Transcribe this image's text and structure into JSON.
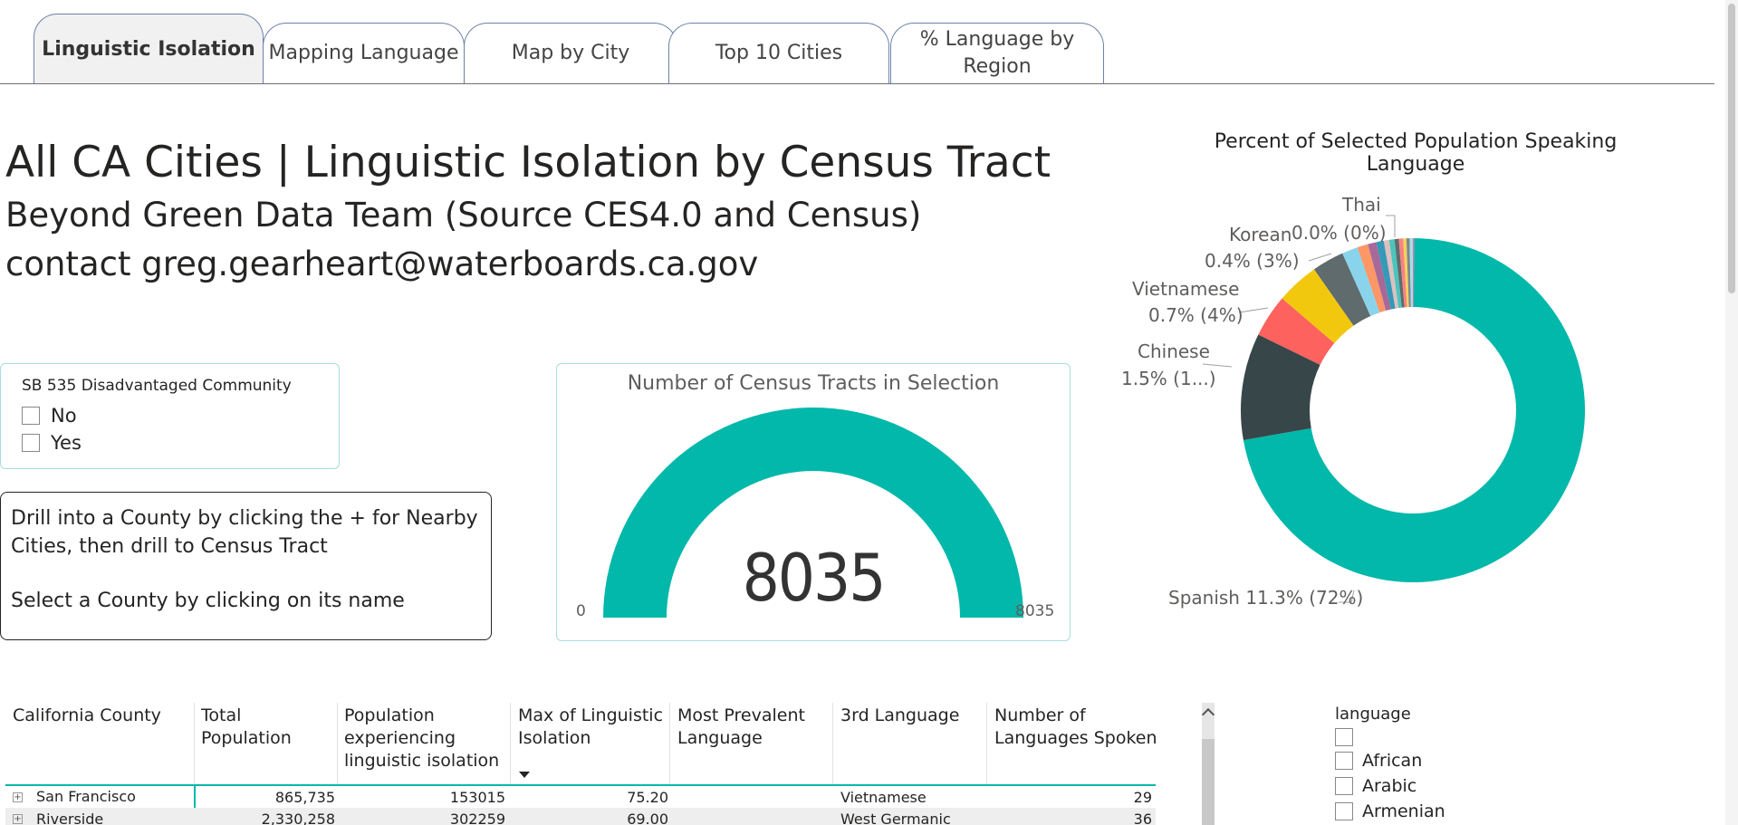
{
  "tabs": [
    {
      "label": "Linguistic Isolation",
      "active": true
    },
    {
      "label": "Mapping Language",
      "active": false
    },
    {
      "label": "Map by City",
      "active": false
    },
    {
      "label": "Top 10 Cities",
      "active": false
    },
    {
      "label": "% Language by Region",
      "active": false
    }
  ],
  "header": {
    "title": "All CA Cities | Linguistic Isolation by Census Tract",
    "subtitle": "Beyond Green Data Team (Source CES4.0 and Census)",
    "contact": "contact greg.gearheart@waterboards.ca.gov"
  },
  "sb535_slicer": {
    "title": "SB 535 Disadvantaged Community",
    "options": [
      "No",
      "Yes"
    ]
  },
  "info": {
    "line1": "Drill into a County by clicking the + for Nearby",
    "line2": "Cities, then drill to Census Tract",
    "line3": "Select a County by clicking on its name"
  },
  "gauge": {
    "title": "Number of Census Tracts in Selection",
    "value": "8035",
    "min": "0",
    "max": "8035",
    "fill_fraction": 1.0,
    "color": "#01b8aa"
  },
  "chart_data": {
    "type": "pie",
    "title": "Percent of Selected Population Speaking Language",
    "donut": true,
    "slices": [
      {
        "label": "Spanish",
        "pct_population": 11.3,
        "share": 72,
        "color": "#01b8aa",
        "data_label": "Spanish 11.3% (72%)"
      },
      {
        "label": "Chinese",
        "pct_population": 1.5,
        "share": 10,
        "color": "#374649",
        "data_label": "Chinese 1.5% (1...)"
      },
      {
        "label": "",
        "share": 4,
        "color": "#fd625e"
      },
      {
        "label": "Vietnamese",
        "pct_population": 0.7,
        "share": 4,
        "color": "#f2c80f",
        "data_label": "Vietnamese 0.7% (4%)"
      },
      {
        "label": "Korean",
        "pct_population": 0.4,
        "share": 3,
        "color": "#5f6b6d",
        "data_label": "Korean 0.4% (3%)"
      },
      {
        "label": "",
        "share": 1.5,
        "color": "#8ad4eb"
      },
      {
        "label": "",
        "share": 1.0,
        "color": "#fe9666"
      },
      {
        "label": "",
        "share": 0.8,
        "color": "#a66999"
      },
      {
        "label": "",
        "share": 0.7,
        "color": "#3599b8"
      },
      {
        "label": "",
        "share": 0.5,
        "color": "#dfbfbf"
      },
      {
        "label": "",
        "share": 0.5,
        "color": "#4ac5bb"
      },
      {
        "label": "",
        "share": 0.4,
        "color": "#5f6b6d"
      },
      {
        "label": "",
        "share": 0.4,
        "color": "#fb8281"
      },
      {
        "label": "",
        "share": 0.3,
        "color": "#f4d25a"
      },
      {
        "label": "",
        "share": 0.3,
        "color": "#7f898a"
      },
      {
        "label": "",
        "share": 0.3,
        "color": "#a4ddee"
      },
      {
        "label": "Thai",
        "pct_population": 0.0,
        "share": 0,
        "color": "#b687ac",
        "data_label": "Thai 0.0% (0%)"
      }
    ]
  },
  "table": {
    "columns": [
      "California County",
      "Total Population",
      "Population experiencing linguistic isolation",
      "Max of Linguistic Isolation",
      "Most Prevalent Language",
      "3rd Language",
      "Number of Languages Spoken"
    ],
    "rows": [
      {
        "county": "San Francisco",
        "total_population": "865,735",
        "population_li": "153015",
        "max_li": "75.20",
        "most_prevalent": "",
        "third_language": "Vietnamese",
        "num_languages": "29"
      },
      {
        "county": "Riverside",
        "total_population": "2,330,258",
        "population_li": "302259",
        "max_li": "69.00",
        "most_prevalent": "",
        "third_language": "West Germanic",
        "num_languages": "36"
      }
    ],
    "expand_symbol": "+"
  },
  "language_slicer": {
    "title": "language",
    "items": [
      "",
      "African",
      "Arabic",
      "Armenian"
    ]
  }
}
